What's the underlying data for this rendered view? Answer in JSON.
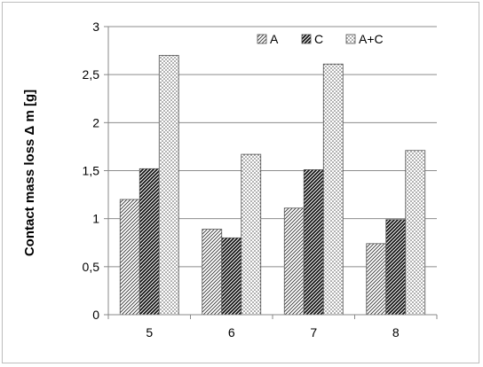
{
  "chart_data": {
    "type": "bar",
    "categories": [
      "5",
      "6",
      "7",
      "8"
    ],
    "series": [
      {
        "name": "A",
        "values": [
          1.2,
          0.89,
          1.11,
          0.74
        ],
        "pattern": "diagonal-light"
      },
      {
        "name": "C",
        "values": [
          1.52,
          0.8,
          1.51,
          0.99
        ],
        "pattern": "diagonal-dark"
      },
      {
        "name": "A+C",
        "values": [
          2.7,
          1.67,
          2.61,
          1.71
        ],
        "pattern": "dots"
      }
    ],
    "xlabel": "",
    "ylabel": "Contact mass loss Δ m [g]",
    "ylim": [
      0,
      3
    ],
    "yticks": [
      "0",
      "0,5",
      "1",
      "1,5",
      "2",
      "2,5",
      "3"
    ],
    "grid": true,
    "legend_position": "top-right"
  }
}
